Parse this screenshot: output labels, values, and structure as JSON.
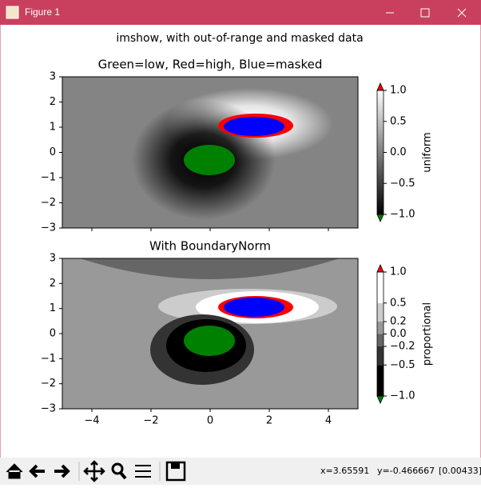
{
  "window": {
    "title": "Figure 1"
  },
  "figure": {
    "title": "imshow, with out-of-range and masked data",
    "axes": [
      {
        "title": "Green=low, Red=high, Blue=masked",
        "xlim": [
          -5,
          5
        ],
        "ylim": [
          -3,
          3
        ],
        "xticks": [
          -4,
          -2,
          0,
          2,
          4
        ],
        "yticks": [
          {
            "value": -3,
            "label": "−3"
          },
          {
            "value": -2,
            "label": "−2"
          },
          {
            "value": -1,
            "label": "−1"
          },
          0,
          1,
          2,
          3
        ],
        "colorbar": {
          "label": "uniform",
          "lim": [
            -1,
            1
          ],
          "ticks": [
            {
              "value": -1,
              "label": "−1.0"
            },
            {
              "value": -0.5,
              "label": "−0.5"
            },
            {
              "value": 0,
              "label": "0.0"
            },
            0.5,
            {
              "value": 1,
              "label": "1.0"
            }
          ]
        }
      },
      {
        "title": "With BoundaryNorm",
        "xlim": [
          -5,
          5
        ],
        "ylim": [
          -3,
          3
        ],
        "xticks": [
          {
            "value": -4,
            "label": "−4"
          },
          {
            "value": -2,
            "label": "−2"
          },
          0,
          2,
          4
        ],
        "yticks": [
          {
            "value": -3,
            "label": "−3"
          },
          {
            "value": -2,
            "label": "−2"
          },
          {
            "value": -1,
            "label": "−1"
          },
          0,
          1,
          2,
          3
        ],
        "colorbar": {
          "label": "proportional",
          "lim": [
            -1,
            1
          ],
          "ticks": [
            {
              "value": -1,
              "label": "−1.0"
            },
            {
              "value": -0.5,
              "label": "−0.5"
            },
            {
              "value": -0.2,
              "label": "−0.2"
            },
            {
              "value": 0,
              "label": "0.0"
            },
            0.2,
            0.5,
            {
              "value": 1,
              "label": "1.0"
            }
          ],
          "colors": [
            "#000000",
            "#333333",
            "#666666",
            "#999999",
            "#cccccc",
            "#ffffff"
          ]
        }
      }
    ]
  },
  "status": {
    "x": "x=3.65591",
    "y": "y=-0.466667",
    "value": "[0.00433]"
  }
}
